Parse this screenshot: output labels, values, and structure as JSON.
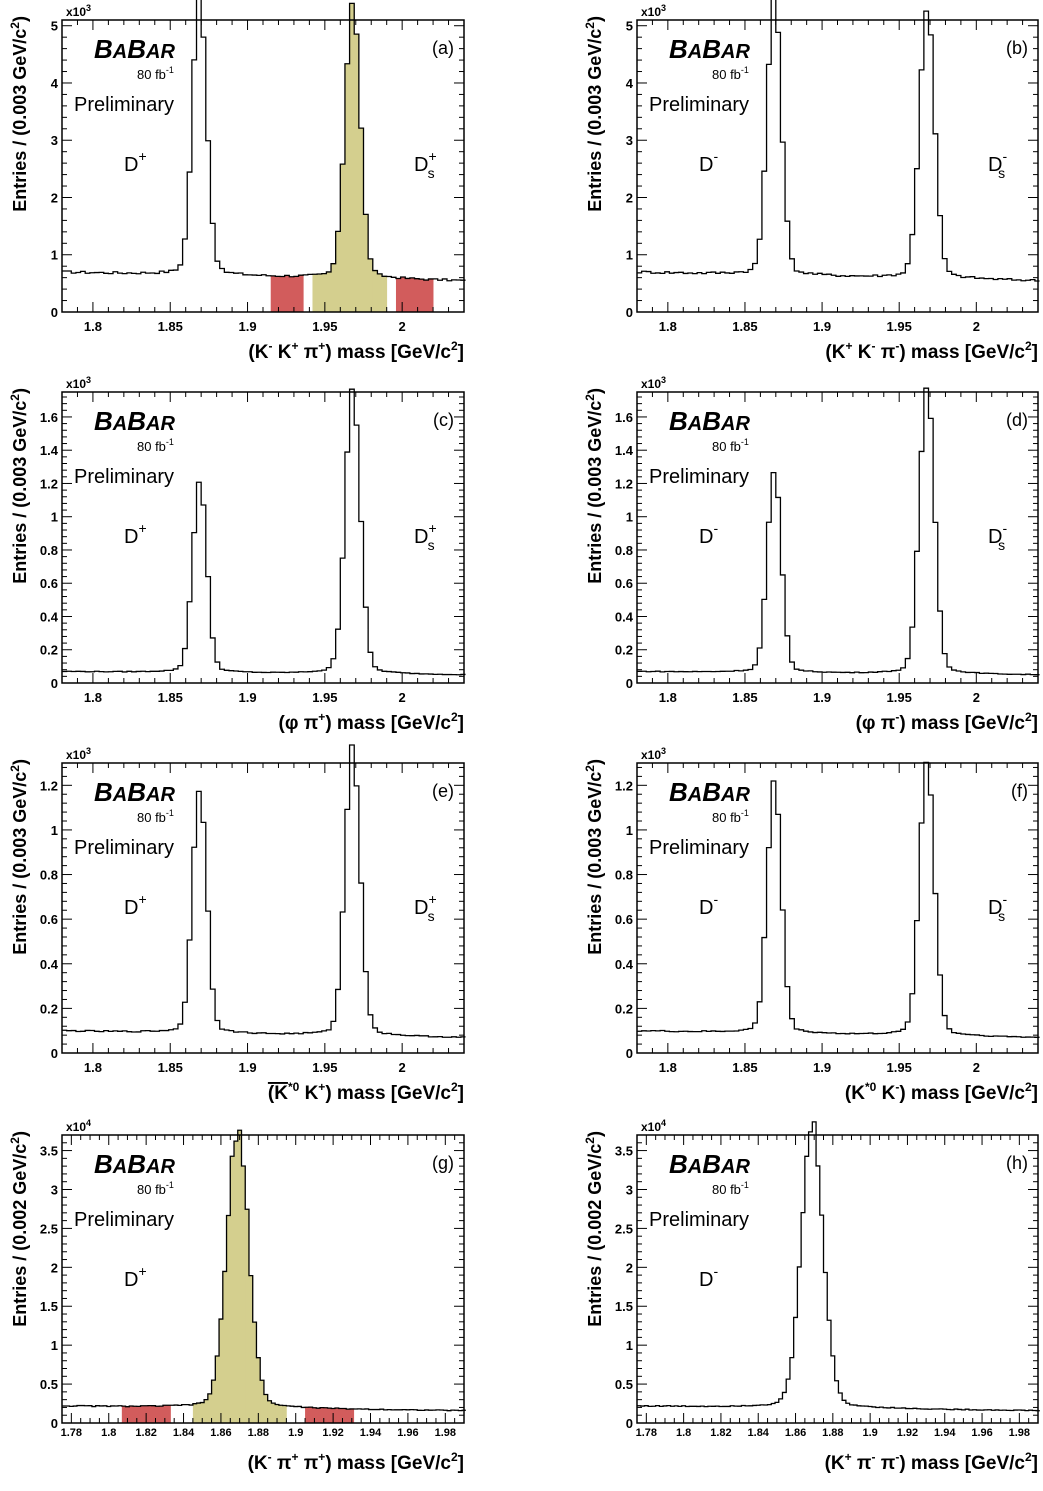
{
  "figure": {
    "panels": [
      {
        "id": "a",
        "panel_label": "(a)",
        "experiment": "BABAR",
        "lumi": "80 fb",
        "lumi_exp": "-1",
        "status": "Preliminary",
        "multiplier": "x10",
        "multiplier_exp": "3",
        "ylabel": "Entries / (0.003 GeV/c",
        "xlabel_parts": [
          [
            "(K",
            ""
          ],
          [
            "-",
            "sup"
          ],
          [
            " K",
            ""
          ],
          [
            "+",
            "sup"
          ],
          [
            " π",
            ""
          ],
          [
            "+",
            "sup"
          ],
          [
            ") mass [GeV/c",
            ""
          ],
          [
            "2",
            "sup"
          ],
          [
            "]",
            ""
          ]
        ],
        "ylabel_mass_unit": "3",
        "peak_labels": [
          {
            "base": "D",
            "sup": "+",
            "sub": "",
            "pos": "left"
          },
          {
            "base": "D",
            "sup": "+",
            "sub": "s",
            "pos": "right"
          }
        ],
        "ticks_x": [
          "1.8",
          "1.85",
          "1.9",
          "1.95",
          "2"
        ],
        "ticks_y": [
          "0",
          "1",
          "2",
          "3",
          "4",
          "5"
        ]
      },
      {
        "id": "b",
        "panel_label": "(b)",
        "experiment": "BABAR",
        "lumi": "80 fb",
        "lumi_exp": "-1",
        "status": "Preliminary",
        "multiplier": "x10",
        "multiplier_exp": "3",
        "ylabel": "Entries / (0.003 GeV/c",
        "xlabel_parts": [
          [
            "(K",
            ""
          ],
          [
            "+",
            "sup"
          ],
          [
            " K",
            ""
          ],
          [
            "-",
            "sup"
          ],
          [
            " π",
            ""
          ],
          [
            "-",
            "sup"
          ],
          [
            ") mass [GeV/c",
            ""
          ],
          [
            "2",
            "sup"
          ],
          [
            "]",
            ""
          ]
        ],
        "peak_labels": [
          {
            "base": "D",
            "sup": "-",
            "sub": "",
            "pos": "left"
          },
          {
            "base": "D",
            "sup": "-",
            "sub": "s",
            "pos": "right"
          }
        ],
        "ticks_x": [
          "1.8",
          "1.85",
          "1.9",
          "1.95",
          "2"
        ],
        "ticks_y": [
          "0",
          "1",
          "2",
          "3",
          "4",
          "5"
        ]
      },
      {
        "id": "c",
        "panel_label": "(c)",
        "experiment": "BABAR",
        "lumi": "80 fb",
        "lumi_exp": "-1",
        "status": "Preliminary",
        "multiplier": "x10",
        "multiplier_exp": "3",
        "ylabel": "Entries / (0.003 GeV/c",
        "xlabel_parts": [
          [
            "(φ π",
            ""
          ],
          [
            "+",
            "sup"
          ],
          [
            ") mass [GeV/c",
            ""
          ],
          [
            "2",
            "sup"
          ],
          [
            "]",
            ""
          ]
        ],
        "peak_labels": [
          {
            "base": "D",
            "sup": "+",
            "sub": "",
            "pos": "left"
          },
          {
            "base": "D",
            "sup": "+",
            "sub": "s",
            "pos": "right"
          }
        ],
        "ticks_x": [
          "1.8",
          "1.85",
          "1.9",
          "1.95",
          "2"
        ],
        "ticks_y": [
          "0",
          "0.2",
          "0.4",
          "0.6",
          "0.8",
          "1",
          "1.2",
          "1.4",
          "1.6"
        ]
      },
      {
        "id": "d",
        "panel_label": "(d)",
        "experiment": "BABAR",
        "lumi": "80 fb",
        "lumi_exp": "-1",
        "status": "Preliminary",
        "multiplier": "x10",
        "multiplier_exp": "3",
        "ylabel": "Entries / (0.003 GeV/c",
        "xlabel_parts": [
          [
            "(φ π",
            ""
          ],
          [
            "-",
            "sup"
          ],
          [
            ") mass [GeV/c",
            ""
          ],
          [
            "2",
            "sup"
          ],
          [
            "]",
            ""
          ]
        ],
        "peak_labels": [
          {
            "base": "D",
            "sup": "-",
            "sub": "",
            "pos": "left"
          },
          {
            "base": "D",
            "sup": "-",
            "sub": "s",
            "pos": "right"
          }
        ],
        "ticks_x": [
          "1.8",
          "1.85",
          "1.9",
          "1.95",
          "2"
        ],
        "ticks_y": [
          "0",
          "0.2",
          "0.4",
          "0.6",
          "0.8",
          "1",
          "1.2",
          "1.4",
          "1.6"
        ]
      },
      {
        "id": "e",
        "panel_label": "(e)",
        "experiment": "BABAR",
        "lumi": "80 fb",
        "lumi_exp": "-1",
        "status": "Preliminary",
        "multiplier": "x10",
        "multiplier_exp": "3",
        "ylabel": "Entries / (0.003 GeV/c",
        "xlabel_parts": [
          [
            "(K",
            ""
          ],
          [
            "*0",
            "sup"
          ],
          [
            " K",
            ""
          ],
          [
            "+",
            "sup"
          ],
          [
            ") mass [GeV/c",
            ""
          ],
          [
            "2",
            "sup"
          ],
          [
            "]",
            ""
          ]
        ],
        "xlabel_overline_first": true,
        "peak_labels": [
          {
            "base": "D",
            "sup": "+",
            "sub": "",
            "pos": "left"
          },
          {
            "base": "D",
            "sup": "+",
            "sub": "s",
            "pos": "right"
          }
        ],
        "ticks_x": [
          "1.8",
          "1.85",
          "1.9",
          "1.95",
          "2"
        ],
        "ticks_y": [
          "0",
          "0.2",
          "0.4",
          "0.6",
          "0.8",
          "1",
          "1.2"
        ]
      },
      {
        "id": "f",
        "panel_label": "(f)",
        "experiment": "BABAR",
        "lumi": "80 fb",
        "lumi_exp": "-1",
        "status": "Preliminary",
        "multiplier": "x10",
        "multiplier_exp": "3",
        "ylabel": "Entries / (0.003 GeV/c",
        "xlabel_parts": [
          [
            "(K",
            ""
          ],
          [
            "*0",
            "sup"
          ],
          [
            " K",
            ""
          ],
          [
            "-",
            "sup"
          ],
          [
            ") mass [GeV/c",
            ""
          ],
          [
            "2",
            "sup"
          ],
          [
            "]",
            ""
          ]
        ],
        "peak_labels": [
          {
            "base": "D",
            "sup": "-",
            "sub": "",
            "pos": "left"
          },
          {
            "base": "D",
            "sup": "-",
            "sub": "s",
            "pos": "right"
          }
        ],
        "ticks_x": [
          "1.8",
          "1.85",
          "1.9",
          "1.95",
          "2"
        ],
        "ticks_y": [
          "0",
          "0.2",
          "0.4",
          "0.6",
          "0.8",
          "1",
          "1.2"
        ]
      },
      {
        "id": "g",
        "panel_label": "(g)",
        "experiment": "BABAR",
        "lumi": "80 fb",
        "lumi_exp": "-1",
        "status": "Preliminary",
        "multiplier": "x10",
        "multiplier_exp": "4",
        "ylabel": "Entries / (0.002 GeV/c",
        "xlabel_parts": [
          [
            "(K",
            ""
          ],
          [
            "-",
            "sup"
          ],
          [
            " π",
            ""
          ],
          [
            "+",
            "sup"
          ],
          [
            " π",
            ""
          ],
          [
            "+",
            "sup"
          ],
          [
            ") mass [GeV/c",
            ""
          ],
          [
            "2",
            "sup"
          ],
          [
            "]",
            ""
          ]
        ],
        "peak_labels": [
          {
            "base": "D",
            "sup": "+",
            "sub": "",
            "pos": "left"
          }
        ],
        "ticks_x": [
          "1.78",
          "1.8",
          "1.82",
          "1.84",
          "1.86",
          "1.88",
          "1.9",
          "1.92",
          "1.94",
          "1.96",
          "1.98"
        ],
        "ticks_y": [
          "0",
          "0.5",
          "1",
          "1.5",
          "2",
          "2.5",
          "3",
          "3.5"
        ]
      },
      {
        "id": "h",
        "panel_label": "(h)",
        "experiment": "BABAR",
        "lumi": "80 fb",
        "lumi_exp": "-1",
        "status": "Preliminary",
        "multiplier": "x10",
        "multiplier_exp": "4",
        "ylabel": "Entries / (0.002 GeV/c",
        "xlabel_parts": [
          [
            "(K",
            ""
          ],
          [
            "+",
            "sup"
          ],
          [
            " π",
            ""
          ],
          [
            "-",
            "sup"
          ],
          [
            " π",
            ""
          ],
          [
            "-",
            "sup"
          ],
          [
            ") mass [GeV/c",
            ""
          ],
          [
            "2",
            "sup"
          ],
          [
            "]",
            ""
          ]
        ],
        "peak_labels": [
          {
            "base": "D",
            "sup": "-",
            "sub": "",
            "pos": "left"
          }
        ],
        "ticks_x": [
          "1.78",
          "1.8",
          "1.82",
          "1.84",
          "1.86",
          "1.88",
          "1.9",
          "1.92",
          "1.94",
          "1.96",
          "1.98"
        ],
        "ticks_y": [
          "0",
          "0.5",
          "1",
          "1.5",
          "2",
          "2.5",
          "3",
          "3.5"
        ]
      }
    ]
  },
  "chart_data": [
    {
      "panel": "a",
      "type": "histogram",
      "x_range": [
        1.78,
        2.04
      ],
      "ylim": [
        0,
        5.1
      ],
      "y_multiplier": 1000,
      "bin_width": 0.003,
      "background_level": [
        0.7,
        0.55
      ],
      "peaks": [
        {
          "center": 1.869,
          "height": 4.8,
          "sigma": 0.0045
        },
        {
          "center": 1.968,
          "height": 4.75,
          "sigma": 0.0048
        }
      ],
      "shaded": [
        {
          "range": [
            1.941,
            1.992
          ],
          "color": "#d4cf8e",
          "type": "signal"
        },
        {
          "range": [
            1.914,
            1.938
          ],
          "color": "#d25c5c",
          "type": "sideband"
        },
        {
          "range": [
            1.996,
            2.02
          ],
          "color": "#d25c5c",
          "type": "sideband"
        }
      ]
    },
    {
      "panel": "b",
      "type": "histogram",
      "x_range": [
        1.78,
        2.04
      ],
      "ylim": [
        0,
        5.1
      ],
      "y_multiplier": 1000,
      "bin_width": 0.003,
      "background_level": [
        0.7,
        0.55
      ],
      "peaks": [
        {
          "center": 1.869,
          "height": 4.8,
          "sigma": 0.0045
        },
        {
          "center": 1.968,
          "height": 4.6,
          "sigma": 0.0048
        }
      ],
      "shaded": []
    },
    {
      "panel": "c",
      "type": "histogram",
      "x_range": [
        1.78,
        2.04
      ],
      "ylim": [
        0,
        1.75
      ],
      "y_multiplier": 1000,
      "bin_width": 0.003,
      "background_level": [
        0.07,
        0.05
      ],
      "peaks": [
        {
          "center": 1.869,
          "height": 1.12,
          "sigma": 0.0045
        },
        {
          "center": 1.968,
          "height": 1.68,
          "sigma": 0.0048
        }
      ],
      "shaded": []
    },
    {
      "panel": "d",
      "type": "histogram",
      "x_range": [
        1.78,
        2.04
      ],
      "ylim": [
        0,
        1.75
      ],
      "y_multiplier": 1000,
      "bin_width": 0.003,
      "background_level": [
        0.07,
        0.05
      ],
      "peaks": [
        {
          "center": 1.869,
          "height": 1.15,
          "sigma": 0.0045
        },
        {
          "center": 1.968,
          "height": 1.68,
          "sigma": 0.0048
        }
      ],
      "shaded": []
    },
    {
      "panel": "e",
      "type": "histogram",
      "x_range": [
        1.78,
        2.04
      ],
      "ylim": [
        0,
        1.3
      ],
      "y_multiplier": 1000,
      "bin_width": 0.003,
      "background_level": [
        0.1,
        0.07
      ],
      "peaks": [
        {
          "center": 1.869,
          "height": 1.08,
          "sigma": 0.0045
        },
        {
          "center": 1.968,
          "height": 1.27,
          "sigma": 0.0048
        }
      ],
      "shaded": []
    },
    {
      "panel": "f",
      "type": "histogram",
      "x_range": [
        1.78,
        2.04
      ],
      "ylim": [
        0,
        1.3
      ],
      "y_multiplier": 1000,
      "bin_width": 0.003,
      "background_level": [
        0.1,
        0.07
      ],
      "peaks": [
        {
          "center": 1.869,
          "height": 1.1,
          "sigma": 0.0045
        },
        {
          "center": 1.968,
          "height": 1.19,
          "sigma": 0.0048
        }
      ],
      "shaded": []
    },
    {
      "panel": "g",
      "type": "histogram",
      "x_range": [
        1.775,
        1.99
      ],
      "ylim": [
        0,
        3.7
      ],
      "y_multiplier": 10000,
      "bin_width": 0.002,
      "background_level": [
        0.22,
        0.16
      ],
      "peaks": [
        {
          "center": 1.869,
          "height": 3.45,
          "sigma": 0.0058
        }
      ],
      "shaded": [
        {
          "range": [
            1.845,
            1.895
          ],
          "color": "#d4cf8e",
          "type": "signal"
        },
        {
          "range": [
            1.807,
            1.833
          ],
          "color": "#d25c5c",
          "type": "sideband"
        },
        {
          "range": [
            1.905,
            1.931
          ],
          "color": "#d25c5c",
          "type": "sideband"
        }
      ]
    },
    {
      "panel": "h",
      "type": "histogram",
      "x_range": [
        1.775,
        1.99
      ],
      "ylim": [
        0,
        3.7
      ],
      "y_multiplier": 10000,
      "bin_width": 0.002,
      "background_level": [
        0.22,
        0.16
      ],
      "peaks": [
        {
          "center": 1.869,
          "height": 3.5,
          "sigma": 0.0058
        }
      ],
      "shaded": []
    }
  ]
}
